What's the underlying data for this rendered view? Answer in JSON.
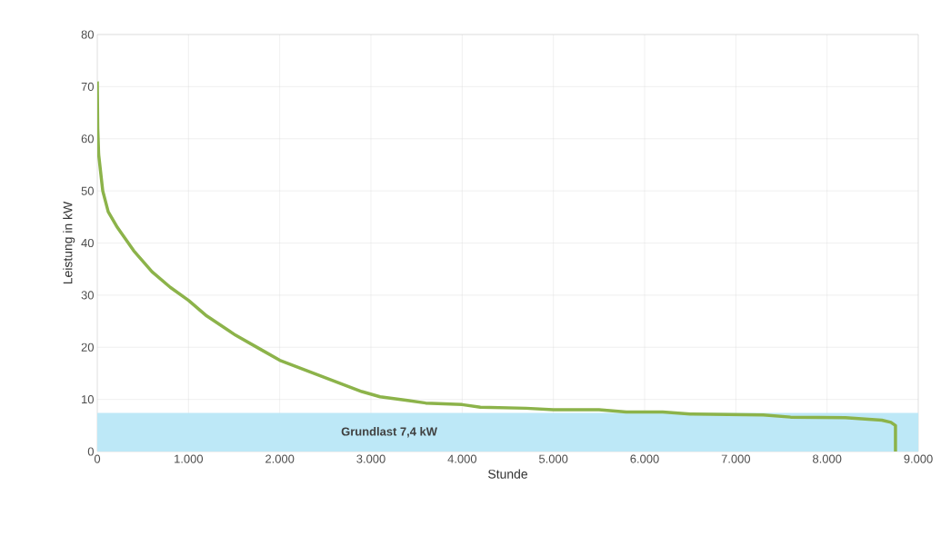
{
  "chart_data": {
    "type": "line",
    "xlabel": "Stunde",
    "ylabel": "Leistung in kW",
    "series": [
      {
        "color": "#8cb34a",
        "x": [
          0,
          5,
          15,
          60,
          120,
          220,
          400,
          600,
          800,
          1000,
          1200,
          1500,
          1800,
          2000,
          2300,
          2600,
          2900,
          3100,
          3400,
          3600,
          4000,
          4200,
          4700,
          5000,
          5500,
          5800,
          6200,
          6500,
          7300,
          7600,
          8200,
          8600,
          8700,
          8750,
          8750
        ],
        "values": [
          71,
          62,
          57,
          50,
          46,
          43,
          38.5,
          34.5,
          31.5,
          29,
          26,
          22.5,
          19.5,
          17.5,
          15.5,
          13.5,
          11.5,
          10.5,
          9.8,
          9.3,
          9,
          8.5,
          8.3,
          8,
          8,
          7.6,
          7.6,
          7.2,
          7,
          6.6,
          6.5,
          6,
          5.6,
          5,
          0
        ]
      }
    ],
    "xlim": [
      0,
      9000
    ],
    "ylim": [
      0,
      80
    ],
    "xticks": [
      {
        "value": 0,
        "label": "0"
      },
      {
        "value": 1000,
        "label": "1.000"
      },
      {
        "value": 2000,
        "label": "2.000"
      },
      {
        "value": 3000,
        "label": "3.000"
      },
      {
        "value": 4000,
        "label": "4.000"
      },
      {
        "value": 5000,
        "label": "5.000"
      },
      {
        "value": 6000,
        "label": "6.000"
      },
      {
        "value": 7000,
        "label": "7.000"
      },
      {
        "value": 8000,
        "label": "8.000"
      },
      {
        "value": 9000,
        "label": "9.000"
      }
    ],
    "yticks": [
      0,
      10,
      20,
      30,
      40,
      50,
      60,
      70,
      80
    ],
    "bands": [
      {
        "axis": "y",
        "from": 0,
        "to": 7.4,
        "label": "Grundlast 7,4 kW",
        "color": "#bde8f7"
      }
    ],
    "grid": true,
    "marker": "none",
    "line_style": "solid"
  }
}
